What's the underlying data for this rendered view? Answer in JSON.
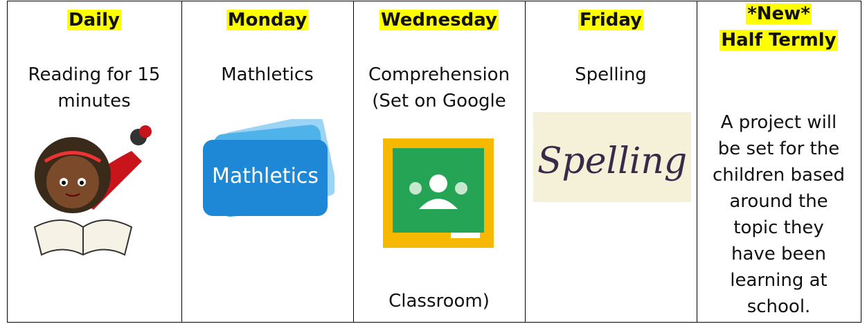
{
  "table": {
    "columns": [
      {
        "header": [
          "Daily"
        ],
        "body": [
          "Reading for 15",
          "minutes"
        ]
      },
      {
        "header": [
          "Monday"
        ],
        "body": [
          "Mathletics"
        ],
        "image_text": "Mathletics"
      },
      {
        "header": [
          "Wednesday"
        ],
        "body": [
          "Comprehension",
          "(Set on Google"
        ],
        "body_after": [
          "Classroom)"
        ]
      },
      {
        "header": [
          "Friday"
        ],
        "body": [
          "Spelling"
        ],
        "image_text": "Spelling"
      },
      {
        "header": [
          "*New*",
          "Half Termly"
        ],
        "body": [
          "A project will",
          "be set for the",
          "children based",
          "around the",
          "topic they",
          "have been",
          "learning at",
          "school."
        ]
      }
    ]
  }
}
